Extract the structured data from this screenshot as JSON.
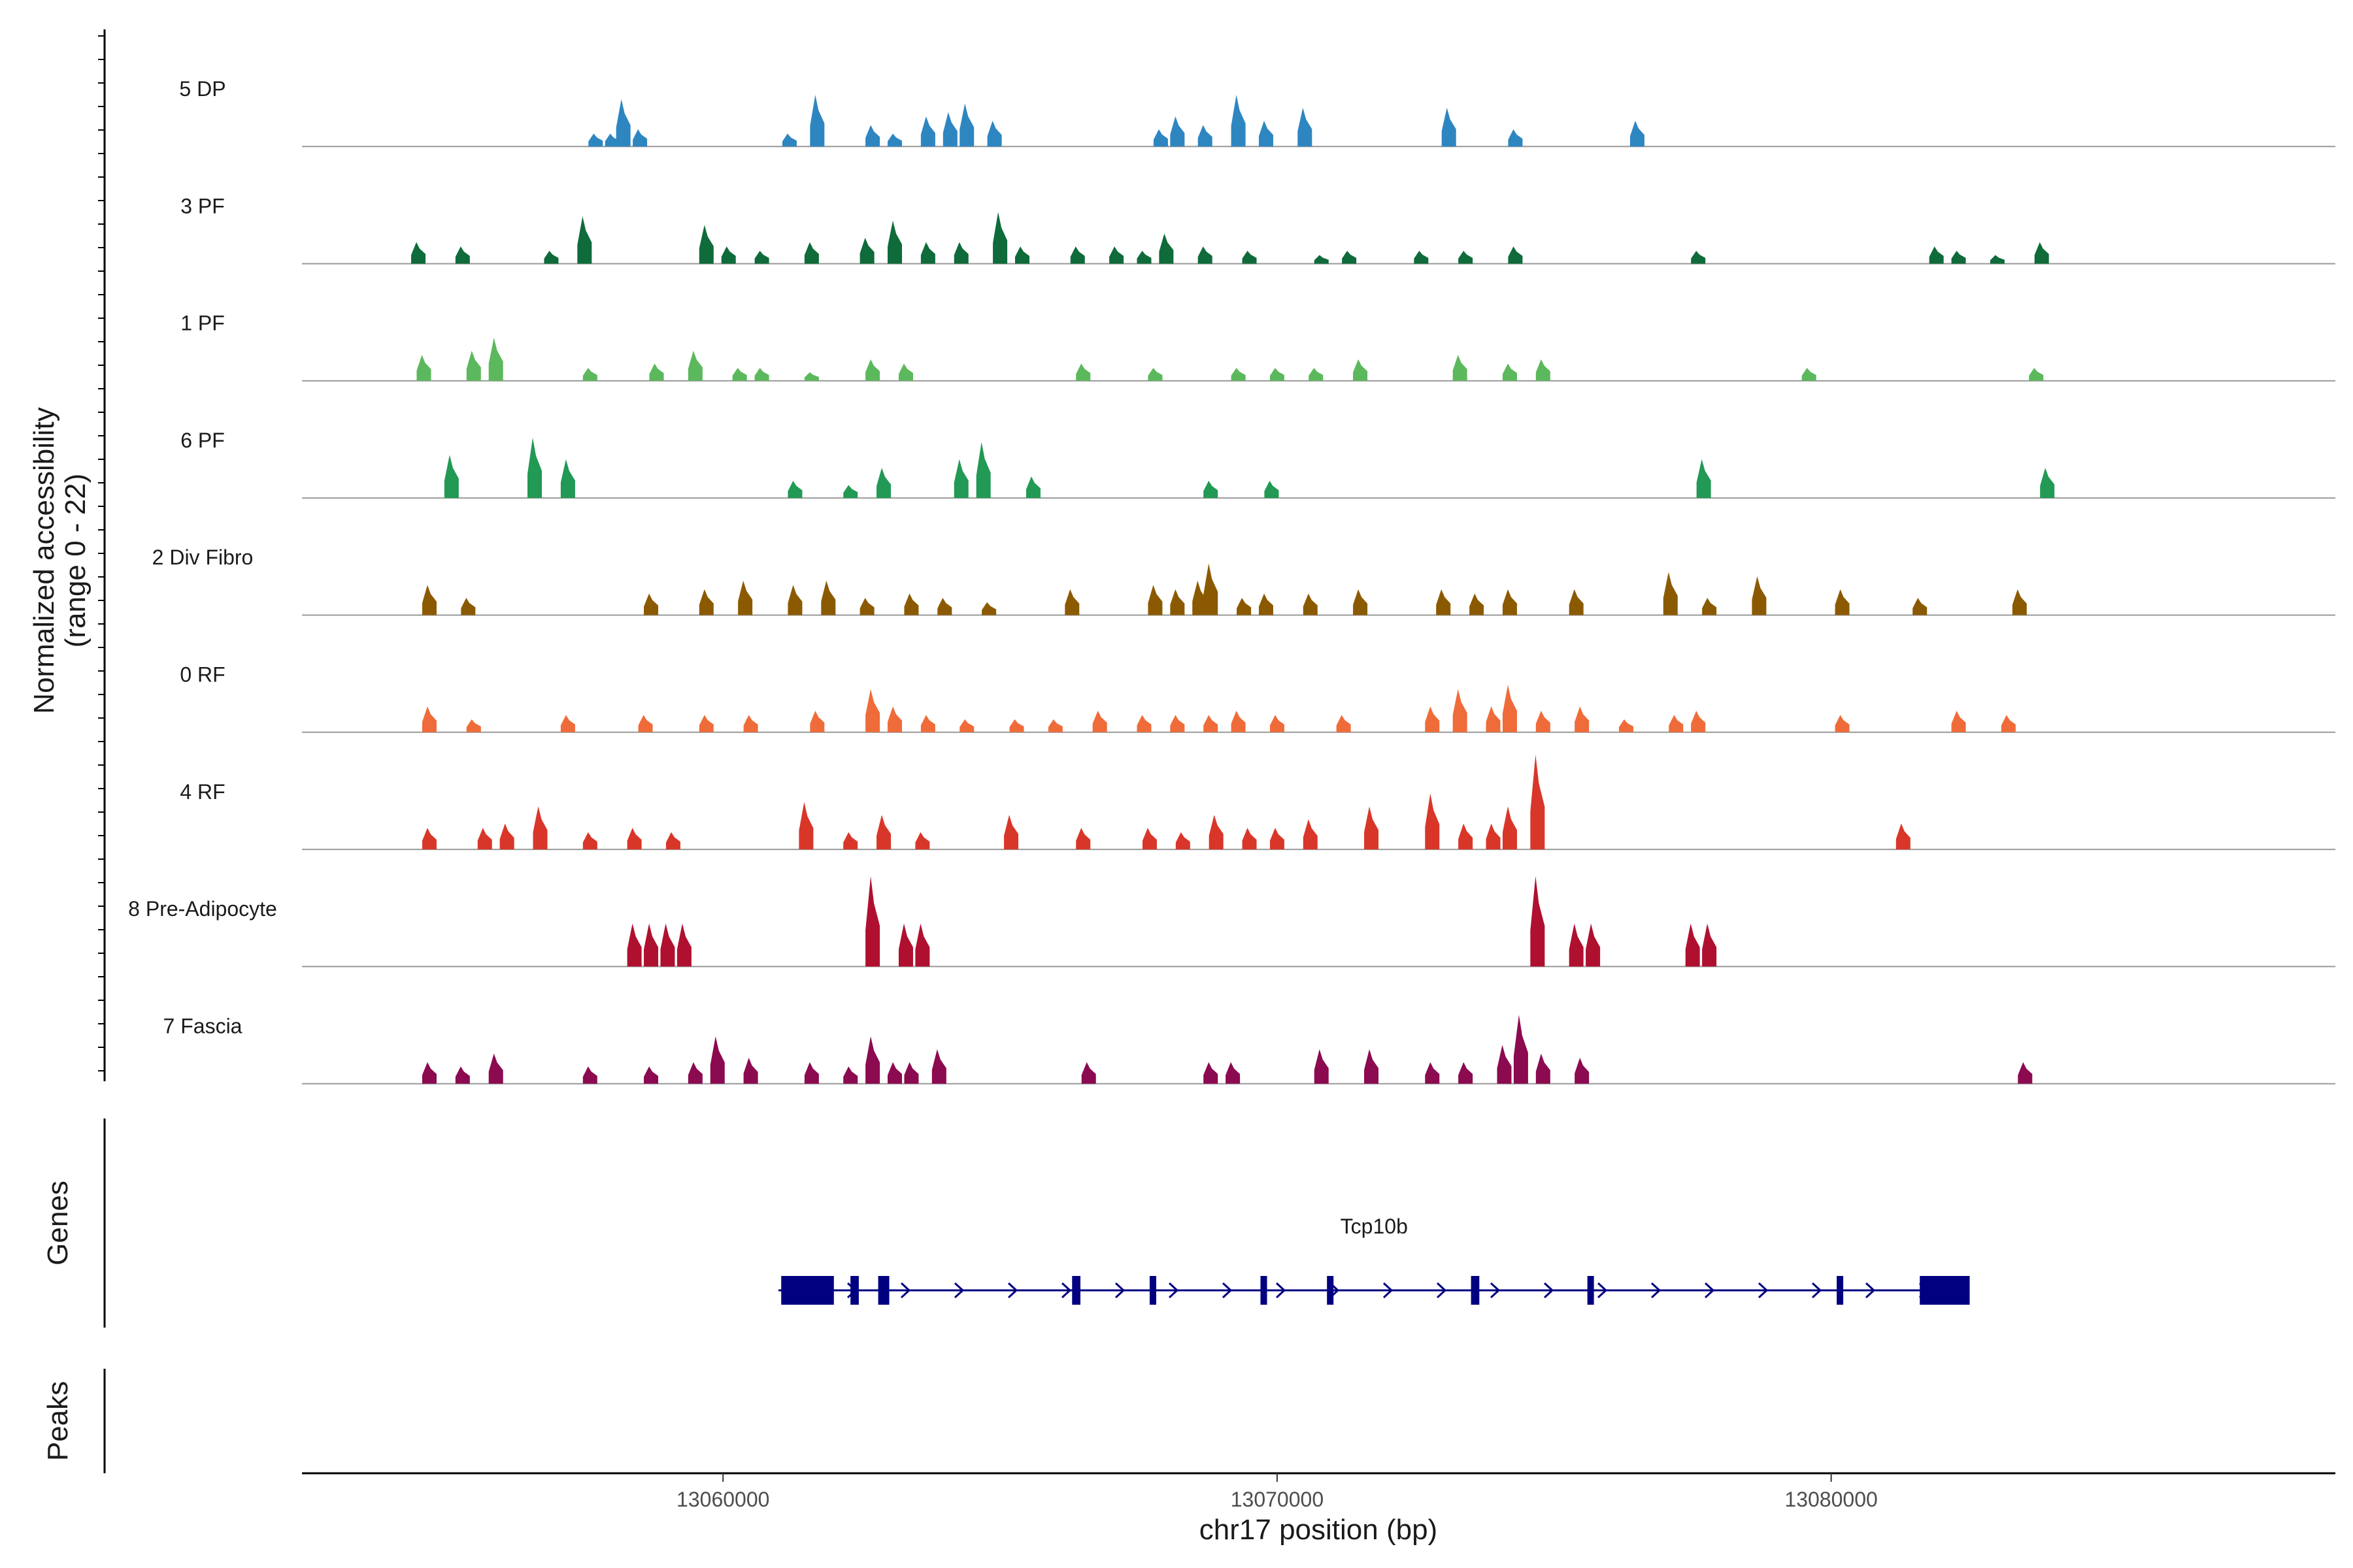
{
  "chart_data": {
    "type": "coverage",
    "y_axis_title_line1": "Normalized accessibility",
    "y_axis_title_line2": "(range 0 - 22)",
    "y_range": [
      0,
      22
    ],
    "x_axis_title": "chr17 position (bp)",
    "x_range": [
      13052400,
      13089100
    ],
    "x_ticks": [
      {
        "value": 13060000,
        "label": "13060000"
      },
      {
        "value": 13070000,
        "label": "13070000"
      },
      {
        "value": 13080000,
        "label": "13080000"
      }
    ],
    "tracks": [
      {
        "name": "5 DP",
        "color": "#2e86c1",
        "peaks": [
          [
            13057700,
            3
          ],
          [
            13058000,
            3
          ],
          [
            13058200,
            11
          ],
          [
            13058500,
            4
          ],
          [
            13061200,
            3
          ],
          [
            13061700,
            12
          ],
          [
            13062700,
            5
          ],
          [
            13063100,
            3
          ],
          [
            13063700,
            7
          ],
          [
            13064100,
            8
          ],
          [
            13064400,
            10
          ],
          [
            13064900,
            6
          ],
          [
            13067900,
            4
          ],
          [
            13068200,
            7
          ],
          [
            13068700,
            5
          ],
          [
            13069300,
            12
          ],
          [
            13069800,
            6
          ],
          [
            13070500,
            9
          ],
          [
            13073100,
            9
          ],
          [
            13074300,
            4
          ],
          [
            13076500,
            6
          ]
        ]
      },
      {
        "name": "3 PF",
        "color": "#0f6b3a",
        "peaks": [
          [
            13054500,
            5
          ],
          [
            13055300,
            4
          ],
          [
            13056900,
            3
          ],
          [
            13057500,
            11
          ],
          [
            13059700,
            9
          ],
          [
            13060100,
            4
          ],
          [
            13060700,
            3
          ],
          [
            13061600,
            5
          ],
          [
            13062600,
            6
          ],
          [
            13063100,
            10
          ],
          [
            13063700,
            5
          ],
          [
            13064300,
            5
          ],
          [
            13065000,
            12
          ],
          [
            13065400,
            4
          ],
          [
            13066400,
            4
          ],
          [
            13067100,
            4
          ],
          [
            13067600,
            3
          ],
          [
            13068000,
            7
          ],
          [
            13068700,
            4
          ],
          [
            13069500,
            3
          ],
          [
            13070800,
            2
          ],
          [
            13071300,
            3
          ],
          [
            13072600,
            3
          ],
          [
            13073400,
            3
          ],
          [
            13074300,
            4
          ],
          [
            13077600,
            3
          ],
          [
            13081900,
            4
          ],
          [
            13082300,
            3
          ],
          [
            13083000,
            2
          ],
          [
            13083800,
            5
          ]
        ]
      },
      {
        "name": "1 PF",
        "color": "#5cb85c",
        "peaks": [
          [
            13054600,
            6
          ],
          [
            13055500,
            7
          ],
          [
            13055900,
            10
          ],
          [
            13057600,
            3
          ],
          [
            13058800,
            4
          ],
          [
            13059500,
            7
          ],
          [
            13060300,
            3
          ],
          [
            13060700,
            3
          ],
          [
            13061600,
            2
          ],
          [
            13062700,
            5
          ],
          [
            13063300,
            4
          ],
          [
            13066500,
            4
          ],
          [
            13067800,
            3
          ],
          [
            13069300,
            3
          ],
          [
            13070000,
            3
          ],
          [
            13070700,
            3
          ],
          [
            13071500,
            5
          ],
          [
            13073300,
            6
          ],
          [
            13074200,
            4
          ],
          [
            13074800,
            5
          ],
          [
            13079600,
            3
          ],
          [
            13083700,
            3
          ]
        ]
      },
      {
        "name": "6 PF",
        "color": "#229954",
        "peaks": [
          [
            13055100,
            10
          ],
          [
            13056600,
            14
          ],
          [
            13057200,
            9
          ],
          [
            13061300,
            4
          ],
          [
            13062300,
            3
          ],
          [
            13062900,
            7
          ],
          [
            13064300,
            9
          ],
          [
            13064700,
            13
          ],
          [
            13065600,
            5
          ],
          [
            13068800,
            4
          ],
          [
            13069900,
            4
          ],
          [
            13077700,
            9
          ],
          [
            13083900,
            7
          ]
        ]
      },
      {
        "name": "2 Div Fibro",
        "color": "#8b5a00",
        "peaks": [
          [
            13054700,
            7
          ],
          [
            13055400,
            4
          ],
          [
            13058700,
            5
          ],
          [
            13059700,
            6
          ],
          [
            13060400,
            8
          ],
          [
            13061300,
            7
          ],
          [
            13061900,
            8
          ],
          [
            13062600,
            4
          ],
          [
            13063400,
            5
          ],
          [
            13064000,
            4
          ],
          [
            13064800,
            3
          ],
          [
            13066300,
            6
          ],
          [
            13067800,
            7
          ],
          [
            13068200,
            6
          ],
          [
            13068600,
            8
          ],
          [
            13068800,
            12
          ],
          [
            13069400,
            4
          ],
          [
            13069800,
            5
          ],
          [
            13070600,
            5
          ],
          [
            13071500,
            6
          ],
          [
            13073000,
            6
          ],
          [
            13073600,
            5
          ],
          [
            13074200,
            6
          ],
          [
            13075400,
            6
          ],
          [
            13077100,
            10
          ],
          [
            13077800,
            4
          ],
          [
            13078700,
            9
          ],
          [
            13080200,
            6
          ],
          [
            13081600,
            4
          ],
          [
            13083400,
            6
          ]
        ]
      },
      {
        "name": "0 RF",
        "color": "#ef6c3a",
        "peaks": [
          [
            13054700,
            6
          ],
          [
            13055500,
            3
          ],
          [
            13057200,
            4
          ],
          [
            13058600,
            4
          ],
          [
            13059700,
            4
          ],
          [
            13060500,
            4
          ],
          [
            13061700,
            5
          ],
          [
            13062700,
            10
          ],
          [
            13063100,
            6
          ],
          [
            13063700,
            4
          ],
          [
            13064400,
            3
          ],
          [
            13065300,
            3
          ],
          [
            13066000,
            3
          ],
          [
            13066800,
            5
          ],
          [
            13067600,
            4
          ],
          [
            13068200,
            4
          ],
          [
            13068800,
            4
          ],
          [
            13069300,
            5
          ],
          [
            13070000,
            4
          ],
          [
            13071200,
            4
          ],
          [
            13072800,
            6
          ],
          [
            13073300,
            10
          ],
          [
            13073900,
            6
          ],
          [
            13074200,
            11
          ],
          [
            13074800,
            5
          ],
          [
            13075500,
            6
          ],
          [
            13076300,
            3
          ],
          [
            13077200,
            4
          ],
          [
            13077600,
            5
          ],
          [
            13080200,
            4
          ],
          [
            13082300,
            5
          ],
          [
            13083200,
            4
          ]
        ]
      },
      {
        "name": "4 RF",
        "color": "#d9362a",
        "peaks": [
          [
            13054700,
            5
          ],
          [
            13055700,
            5
          ],
          [
            13056100,
            6
          ],
          [
            13056700,
            10
          ],
          [
            13057600,
            4
          ],
          [
            13058400,
            5
          ],
          [
            13059100,
            4
          ],
          [
            13061500,
            11
          ],
          [
            13062300,
            4
          ],
          [
            13062900,
            8
          ],
          [
            13063600,
            4
          ],
          [
            13065200,
            8
          ],
          [
            13066500,
            5
          ],
          [
            13067700,
            5
          ],
          [
            13068300,
            4
          ],
          [
            13068900,
            8
          ],
          [
            13069500,
            5
          ],
          [
            13070000,
            5
          ],
          [
            13070600,
            7
          ],
          [
            13071700,
            10
          ],
          [
            13072800,
            13
          ],
          [
            13073400,
            6
          ],
          [
            13073900,
            6
          ],
          [
            13074200,
            10
          ],
          [
            13074700,
            22
          ],
          [
            13081300,
            6
          ]
        ]
      },
      {
        "name": "8 Pre-Adipocyte",
        "color": "#b0102f",
        "peaks": [
          [
            13058400,
            10
          ],
          [
            13058700,
            10
          ],
          [
            13059000,
            10
          ],
          [
            13059300,
            10
          ],
          [
            13062700,
            21
          ],
          [
            13063300,
            10
          ],
          [
            13063600,
            10
          ],
          [
            13074700,
            21
          ],
          [
            13075400,
            10
          ],
          [
            13075700,
            10
          ],
          [
            13077500,
            10
          ],
          [
            13077800,
            10
          ]
        ]
      },
      {
        "name": "7 Fascia",
        "color": "#8b0a50",
        "peaks": [
          [
            13054700,
            5
          ],
          [
            13055300,
            4
          ],
          [
            13055900,
            7
          ],
          [
            13057600,
            4
          ],
          [
            13058700,
            4
          ],
          [
            13059500,
            5
          ],
          [
            13059900,
            11
          ],
          [
            13060500,
            6
          ],
          [
            13061600,
            5
          ],
          [
            13062300,
            4
          ],
          [
            13062700,
            11
          ],
          [
            13063100,
            5
          ],
          [
            13063400,
            5
          ],
          [
            13063900,
            8
          ],
          [
            13066600,
            5
          ],
          [
            13068800,
            5
          ],
          [
            13069200,
            5
          ],
          [
            13070800,
            8
          ],
          [
            13071700,
            8
          ],
          [
            13072800,
            5
          ],
          [
            13073400,
            5
          ],
          [
            13074100,
            9
          ],
          [
            13074400,
            16
          ],
          [
            13074800,
            7
          ],
          [
            13075500,
            6
          ],
          [
            13083500,
            5
          ]
        ]
      }
    ],
    "genes_title": "Genes",
    "gene": {
      "name": "Tcp10b",
      "start": 13061000,
      "end": 13082500,
      "strand": "+",
      "exons": [
        [
          13061050,
          13062000
        ],
        [
          13062300,
          13062450
        ],
        [
          13062800,
          13063000
        ],
        [
          13066300,
          13066450
        ],
        [
          13067700,
          13067800
        ],
        [
          13069700,
          13069800
        ],
        [
          13070900,
          13071000
        ],
        [
          13073500,
          13073650
        ],
        [
          13075600,
          13075700
        ],
        [
          13080100,
          13080200
        ],
        [
          13081600,
          13082500
        ]
      ]
    },
    "peaks_title": "Peaks"
  }
}
